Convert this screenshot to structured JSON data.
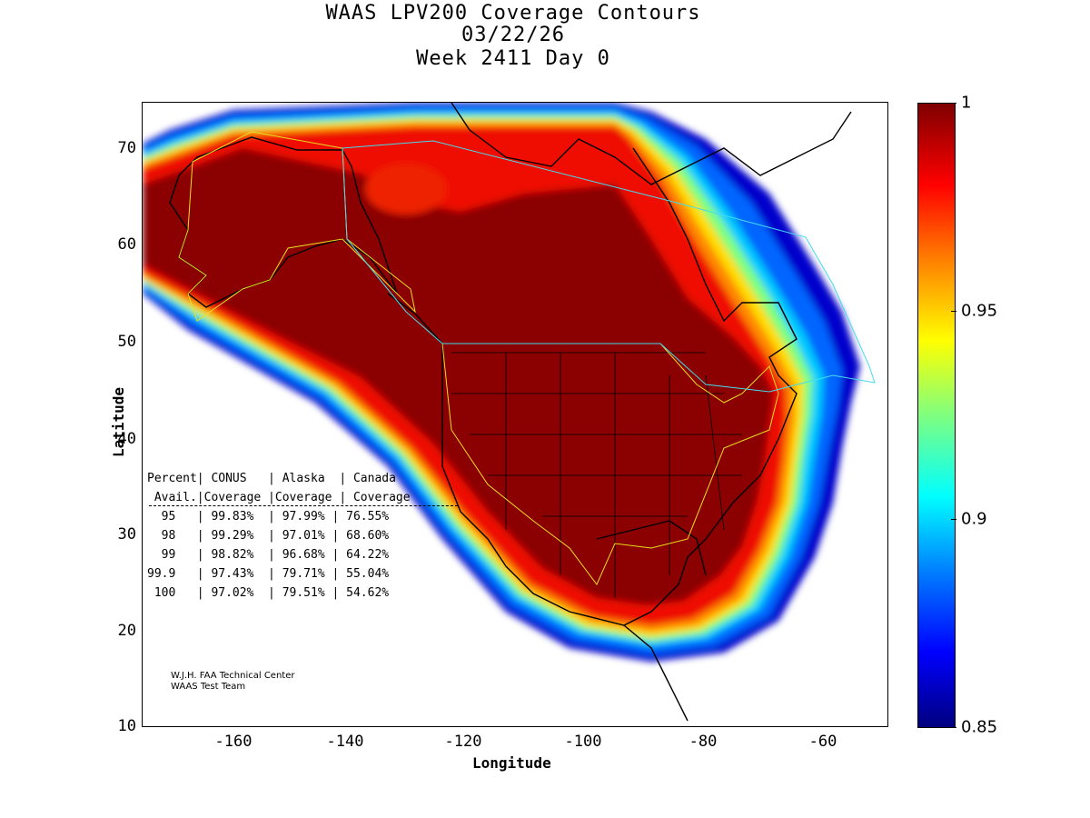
{
  "title": {
    "line1": "WAAS LPV200 Coverage Contours",
    "line2": "03/22/26",
    "line3": "Week 2411 Day 0"
  },
  "axes": {
    "xlabel": "Longitude",
    "ylabel": "Latitude",
    "xticks": [
      "-160",
      "-140",
      "-120",
      "-100",
      "-80",
      "-60"
    ],
    "yticks": [
      "70",
      "60",
      "50",
      "40",
      "30",
      "20",
      "10"
    ],
    "xlim": [
      -175,
      -50
    ],
    "ylim": [
      10,
      75
    ]
  },
  "colorbar": {
    "ticks": [
      "1",
      "0.95",
      "0.9",
      "0.85"
    ],
    "range": [
      0.85,
      1
    ],
    "colors": [
      "#00007f",
      "#0000ff",
      "#007fff",
      "#00ffff",
      "#7fff7f",
      "#ffff00",
      "#ff7f00",
      "#ff0000",
      "#7f0000"
    ]
  },
  "stats_table": {
    "header1": "Percent| CONUS   | Alaska  | Canada",
    "header2": " Avail.|Coverage |Coverage | Coverage",
    "rows": [
      "  95   | 99.83%  | 97.99% | 76.55%",
      "  98   | 99.29%  | 97.01% | 68.60%",
      "  99   | 98.82%  | 96.68% | 64.22%",
      "99.9   | 97.43%  | 79.71% | 55.04%",
      " 100   | 97.02%  | 79.51% | 54.62%"
    ]
  },
  "credit": {
    "line1": "W.J.H. FAA Technical Center",
    "line2": "WAAS Test Team"
  }
}
